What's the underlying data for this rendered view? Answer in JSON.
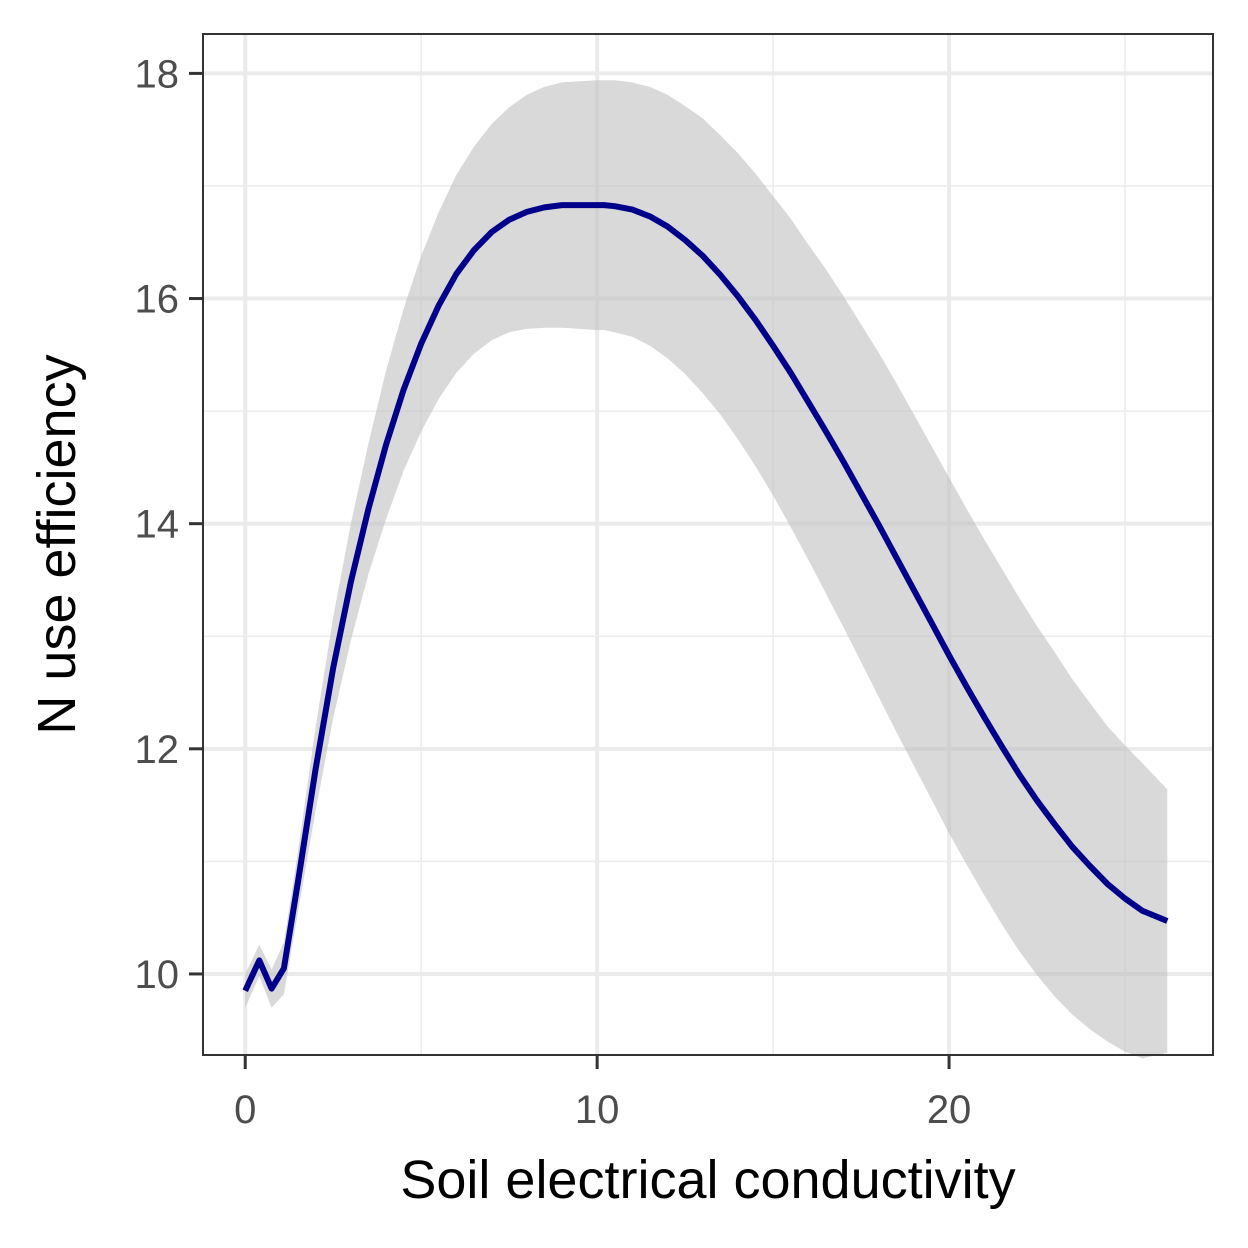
{
  "chart_data": {
    "type": "line",
    "title": "",
    "xlabel": "Soil electrical conductivity",
    "ylabel": "N use efficiency",
    "xlim": [
      -1.2,
      27.5
    ],
    "ylim": [
      9.28,
      18.35
    ],
    "x_ticks": [
      0,
      10,
      20
    ],
    "x_tick_labels": [
      "0",
      "10",
      "20"
    ],
    "x_minor_ticks": [
      5,
      15,
      25
    ],
    "y_ticks": [
      10,
      12,
      14,
      16,
      18
    ],
    "y_tick_labels": [
      "10",
      "12",
      "14",
      "16",
      "18"
    ],
    "y_minor_ticks": [
      11,
      13,
      15,
      17
    ],
    "grid": true,
    "legend": "none",
    "colors": {
      "line": "#00008b",
      "ribbon": "#bfbfbf",
      "grid": "#ebebeb",
      "border": "#333333",
      "tick_text": "#4d4d4d"
    },
    "series": [
      {
        "x": [
          0.0,
          0.4,
          0.75,
          1.1,
          1.5,
          2.0,
          2.5,
          3.0,
          3.5,
          4.0,
          4.5,
          5.0,
          5.5,
          6.0,
          6.5,
          7.0,
          7.5,
          8.0,
          8.5,
          9.0,
          9.5,
          10.0,
          10.2,
          10.5,
          11.0,
          11.5,
          12.0,
          12.5,
          13.0,
          13.5,
          14.0,
          14.5,
          15.0,
          15.5,
          16.0,
          16.5,
          17.0,
          17.5,
          18.0,
          18.5,
          19.0,
          19.5,
          20.0,
          20.5,
          21.0,
          21.5,
          22.0,
          22.5,
          23.0,
          23.5,
          24.0,
          24.5,
          25.0,
          25.5,
          26.2
        ],
        "y": [
          9.85,
          10.12,
          9.87,
          10.05,
          10.82,
          11.82,
          12.72,
          13.48,
          14.13,
          14.7,
          15.19,
          15.6,
          15.94,
          16.22,
          16.43,
          16.59,
          16.7,
          16.77,
          16.81,
          16.83,
          16.83,
          16.83,
          16.83,
          16.82,
          16.79,
          16.73,
          16.64,
          16.52,
          16.38,
          16.21,
          16.02,
          15.81,
          15.58,
          15.34,
          15.08,
          14.82,
          14.55,
          14.27,
          13.99,
          13.7,
          13.41,
          13.12,
          12.83,
          12.55,
          12.28,
          12.02,
          11.77,
          11.54,
          11.33,
          11.13,
          10.96,
          10.8,
          10.67,
          10.56,
          10.47
        ],
        "lower": [
          9.7,
          9.98,
          9.7,
          9.82,
          10.55,
          11.45,
          12.27,
          12.96,
          13.55,
          14.04,
          14.47,
          14.82,
          15.11,
          15.34,
          15.51,
          15.63,
          15.7,
          15.73,
          15.74,
          15.74,
          15.73,
          15.72,
          15.72,
          15.7,
          15.66,
          15.58,
          15.47,
          15.33,
          15.16,
          14.97,
          14.75,
          14.51,
          14.25,
          13.97,
          13.68,
          13.38,
          13.08,
          12.77,
          12.46,
          12.15,
          11.85,
          11.55,
          11.25,
          10.97,
          10.7,
          10.44,
          10.2,
          9.99,
          9.8,
          9.64,
          9.51,
          9.4,
          9.31,
          9.25,
          9.3
        ],
        "upper": [
          10.0,
          10.26,
          10.04,
          10.28,
          11.09,
          12.19,
          13.17,
          14.0,
          14.71,
          15.36,
          15.91,
          16.38,
          16.77,
          17.1,
          17.35,
          17.55,
          17.7,
          17.81,
          17.88,
          17.92,
          17.93,
          17.94,
          17.94,
          17.94,
          17.92,
          17.88,
          17.81,
          17.71,
          17.6,
          17.45,
          17.29,
          17.11,
          16.91,
          16.71,
          16.48,
          16.26,
          16.02,
          15.77,
          15.52,
          15.25,
          14.97,
          14.69,
          14.41,
          14.13,
          13.86,
          13.6,
          13.34,
          13.09,
          12.86,
          12.62,
          12.41,
          12.2,
          12.03,
          11.87,
          11.64
        ]
      }
    ]
  }
}
